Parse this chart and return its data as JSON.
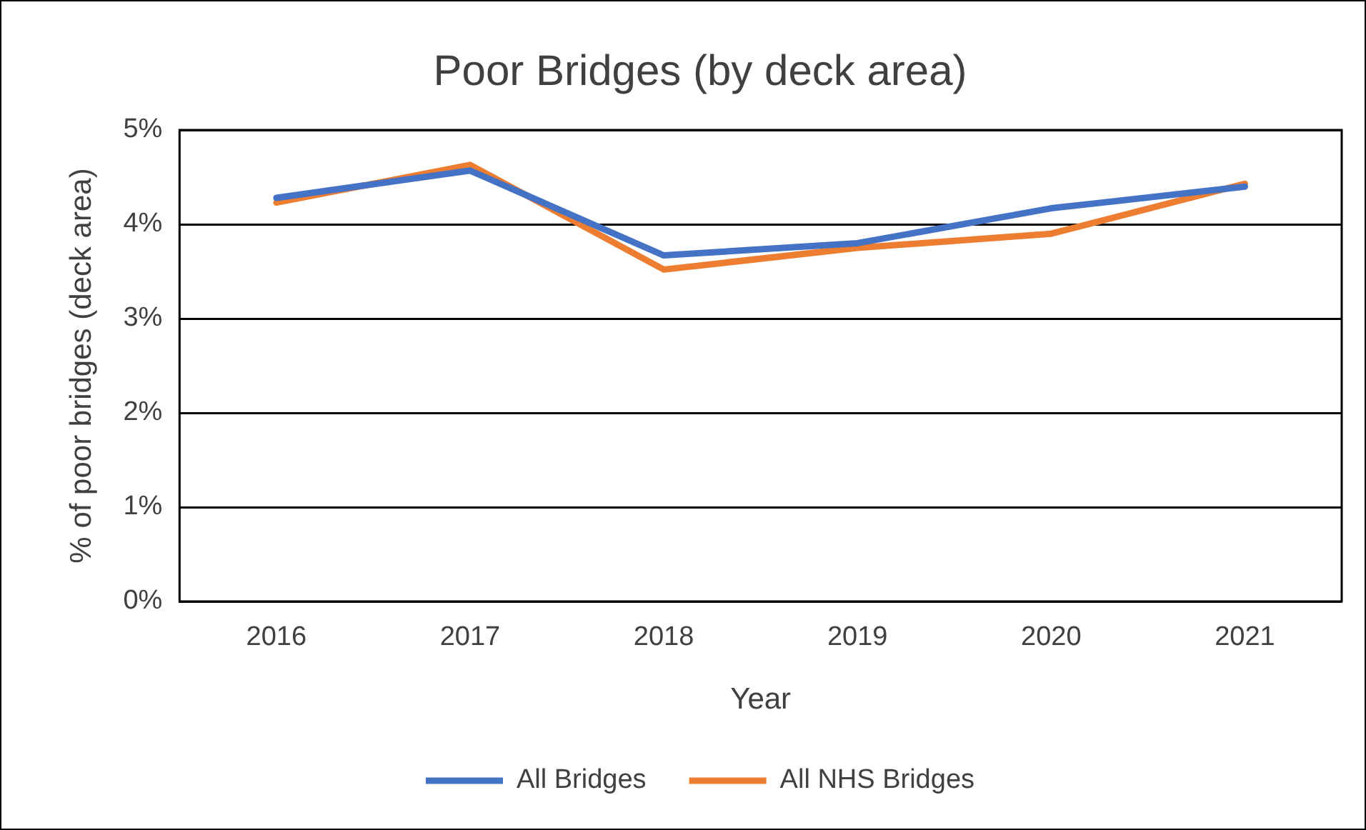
{
  "chart_data": {
    "type": "line",
    "title": "Poor Bridges (by deck area)",
    "xlabel": "Year",
    "ylabel": "% of poor bridges (deck area)",
    "categories": [
      "2016",
      "2017",
      "2018",
      "2019",
      "2020",
      "2021"
    ],
    "series": [
      {
        "name": "All Bridges",
        "color": "#4472c4",
        "values": [
          4.28,
          4.57,
          3.67,
          3.8,
          4.17,
          4.4
        ]
      },
      {
        "name": "All NHS Bridges",
        "color": "#ed7d31",
        "values": [
          4.23,
          4.63,
          3.52,
          3.75,
          3.9,
          4.43
        ]
      }
    ],
    "ylim": [
      0,
      5
    ],
    "yticks": [
      {
        "value": 0,
        "label": "0%"
      },
      {
        "value": 1,
        "label": "1%"
      },
      {
        "value": 2,
        "label": "2%"
      },
      {
        "value": 3,
        "label": "3%"
      },
      {
        "value": 4,
        "label": "4%"
      },
      {
        "value": 5,
        "label": "5%"
      }
    ],
    "grid": "y",
    "legend": "bottom",
    "marker": "none",
    "line_style": "solid"
  }
}
